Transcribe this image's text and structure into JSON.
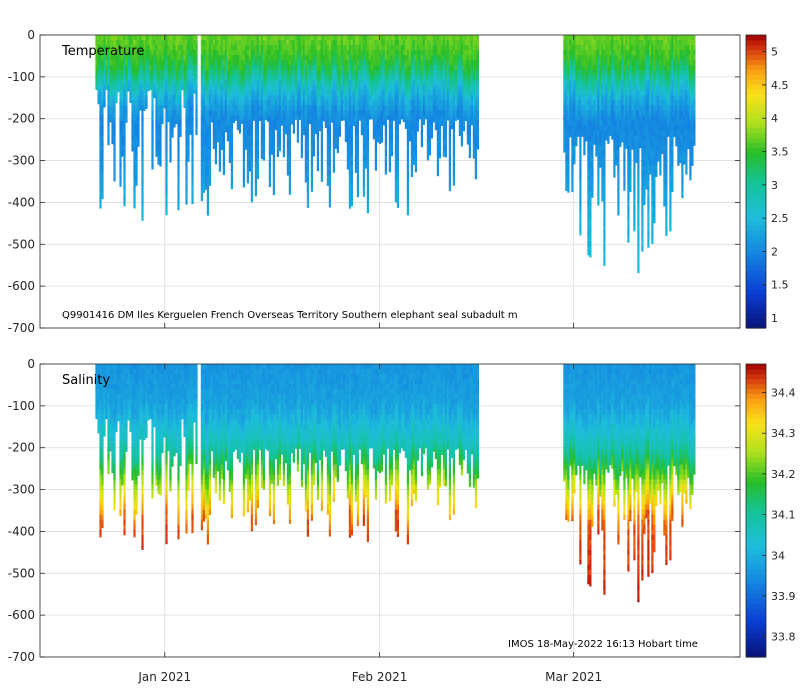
{
  "chart_data": [
    {
      "type": "heatmap",
      "title": "Temperature",
      "annotation": "Q9901416 DM Iles Kerguelen French Overseas Territory Southern elephant seal subadult m",
      "ylim": [
        -700,
        0
      ],
      "yticks": [
        0,
        -100,
        -200,
        -300,
        -400,
        -500,
        -600,
        -700
      ],
      "x_range_days": [
        -18,
        83
      ],
      "xticks": [
        {
          "day": 0,
          "label": "Jan 2021"
        },
        {
          "day": 31,
          "label": "Feb 2021"
        },
        {
          "day": 59,
          "label": "Mar 2021"
        }
      ],
      "grid": true,
      "colorbar": {
        "min": 0.85,
        "max": 5.25,
        "ticks": [
          1,
          1.5,
          2,
          2.5,
          3,
          3.5,
          4,
          4.5,
          5
        ]
      },
      "profile_segments": [
        {
          "start_day": -10,
          "end_day": 4.6,
          "depth_min": -130,
          "depth_max": -460
        },
        {
          "start_day": 5.2,
          "end_day": 45.3,
          "depth_min": -200,
          "depth_max": -430
        },
        {
          "start_day": 57.5,
          "end_day": 76.5,
          "depth_min": -240,
          "depth_max": -595
        }
      ],
      "depth_profile": [
        {
          "depth": 0,
          "value": 3.7
        },
        {
          "depth": -60,
          "value": 3.5
        },
        {
          "depth": -100,
          "value": 3.0
        },
        {
          "depth": -140,
          "value": 2.4
        },
        {
          "depth": -200,
          "value": 2.0
        },
        {
          "depth": -300,
          "value": 2.1
        },
        {
          "depth": -450,
          "value": 2.4
        },
        {
          "depth": -600,
          "value": 2.5
        }
      ]
    },
    {
      "type": "heatmap",
      "title": "Salinity",
      "annotation": "IMOS 18-May-2022 16:13 Hobart time",
      "ylim": [
        -700,
        0
      ],
      "yticks": [
        0,
        -100,
        -200,
        -300,
        -400,
        -500,
        -600,
        -700
      ],
      "x_range_days": [
        -18,
        83
      ],
      "xticks": [
        {
          "day": 0,
          "label": "Jan 2021"
        },
        {
          "day": 31,
          "label": "Feb 2021"
        },
        {
          "day": 59,
          "label": "Mar 2021"
        }
      ],
      "grid": true,
      "colorbar": {
        "min": 33.75,
        "max": 34.47,
        "ticks": [
          33.8,
          33.9,
          34,
          34.1,
          34.2,
          34.3,
          34.4
        ]
      },
      "profile_segments": [
        {
          "start_day": -10,
          "end_day": 4.6,
          "depth_min": -130,
          "depth_max": -460
        },
        {
          "start_day": 5.2,
          "end_day": 45.3,
          "depth_min": -200,
          "depth_max": -430
        },
        {
          "start_day": 57.5,
          "end_day": 76.5,
          "depth_min": -240,
          "depth_max": -595
        }
      ],
      "depth_profile": [
        {
          "depth": 0,
          "value": 33.96
        },
        {
          "depth": -100,
          "value": 33.98
        },
        {
          "depth": -200,
          "value": 34.08
        },
        {
          "depth": -260,
          "value": 34.2
        },
        {
          "depth": -320,
          "value": 34.32
        },
        {
          "depth": -380,
          "value": 34.42
        },
        {
          "depth": -600,
          "value": 34.46
        }
      ]
    }
  ]
}
